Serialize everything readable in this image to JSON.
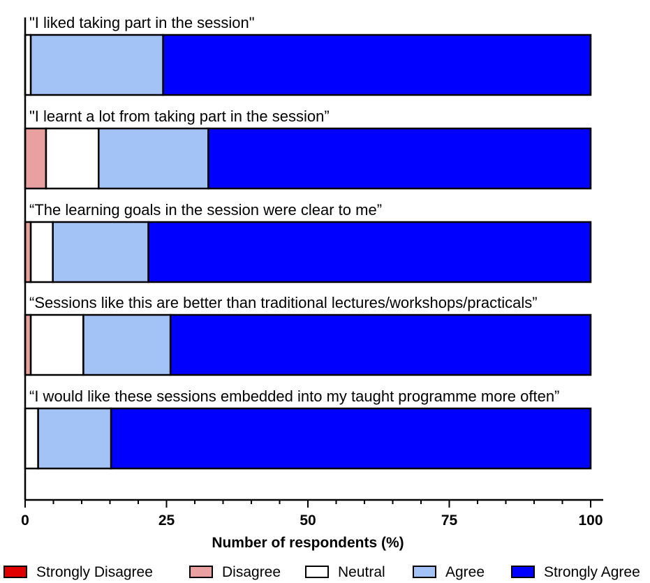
{
  "chart_data": {
    "type": "bar",
    "orientation": "horizontal",
    "stacked": true,
    "xlabel": "Number of respondents (%)",
    "xlim": [
      0,
      100
    ],
    "x_ticks": [
      "0",
      "25",
      "50",
      "75",
      "100"
    ],
    "categories": [
      "\"I liked taking part in the session\"",
      "\"I learnt a lot from taking part in the session”",
      "“The learning goals in the session were clear to me”",
      "“Sessions like this are better than traditional lectures/workshops/practicals”",
      "“I would like these sessions embedded into my taught programme more often”"
    ],
    "series": [
      {
        "name": "Strongly Disagree",
        "color": "#e00000",
        "values": [
          0,
          0,
          0,
          0,
          0
        ]
      },
      {
        "name": "Disagree",
        "color": "#e8a0a0",
        "values": [
          0,
          3.7,
          1.0,
          1.0,
          0
        ]
      },
      {
        "name": "Neutral",
        "color": "#ffffff",
        "values": [
          1.0,
          9.3,
          3.9,
          9.3,
          2.3
        ]
      },
      {
        "name": "Agree",
        "color": "#a3c2f5",
        "values": [
          23.4,
          19.4,
          16.9,
          15.4,
          12.9
        ]
      },
      {
        "name": "Strongly Agree",
        "color": "#0000ff",
        "values": [
          75.6,
          67.6,
          78.2,
          74.3,
          84.8
        ]
      }
    ],
    "legend_position": "bottom",
    "grid": false
  }
}
